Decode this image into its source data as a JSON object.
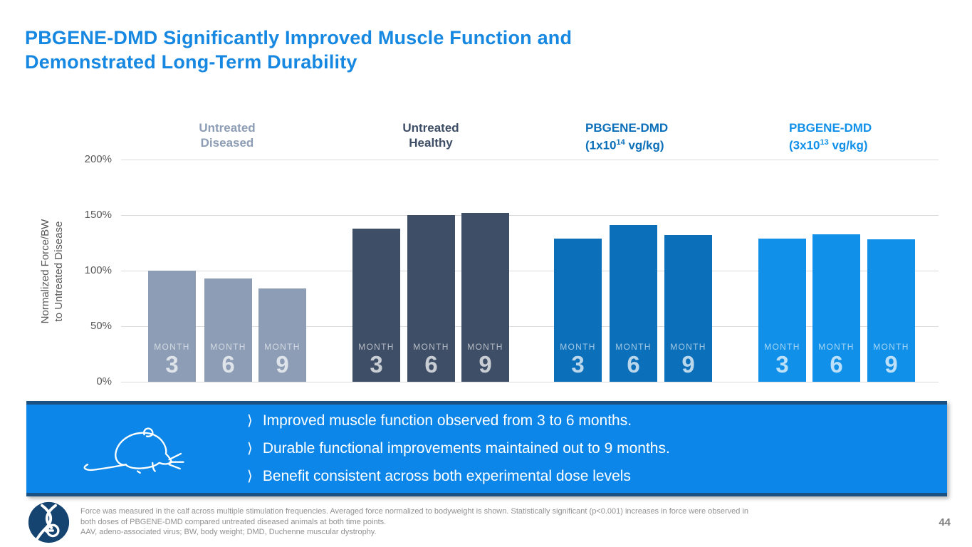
{
  "slide": {
    "title_line1": "PBGENE-DMD Significantly Improved Muscle Function and",
    "title_line2": "Demonstrated Long-Term Durability"
  },
  "colors": {
    "title_blue": "#1788E1",
    "callout_bg": "#0C86E8",
    "callout_border": "#1A5182",
    "gridline": "#DBDBDB",
    "axis_text": "#595959",
    "footnote_gray": "#919191"
  },
  "chart_data": {
    "type": "bar",
    "title": "",
    "ylabel_line1": "Normalized Force/BW",
    "ylabel_line2": "to Untreated Disease",
    "ylim": [
      0,
      200
    ],
    "grid": true,
    "ytick_values": [
      200,
      150,
      100,
      50,
      0
    ],
    "ytick_labels": [
      "200%",
      "150%",
      "100%",
      "50%",
      "0%"
    ],
    "bar_inner_word": "MONTH",
    "categories": [
      "3",
      "6",
      "9"
    ],
    "series": [
      {
        "name_line1": "Untreated",
        "name_line2_pre": "Diseased",
        "name_line2_sup": "",
        "name_line2_post": "",
        "label_align": "center",
        "color": "#8C9DB5",
        "values": [
          100,
          93,
          84
        ]
      },
      {
        "name_line1": "Untreated",
        "name_line2_pre": "Healthy",
        "name_line2_sup": "",
        "name_line2_post": "",
        "label_align": "center",
        "color": "#3E4E66",
        "values": [
          138,
          150,
          152
        ]
      },
      {
        "name_line1": "PBGENE-DMD",
        "name_line2_pre": "(1x10",
        "name_line2_sup": "14",
        "name_line2_post": " vg/kg)",
        "label_align": "left",
        "color": "#0B6FB9",
        "values": [
          129,
          141,
          132
        ]
      },
      {
        "name_line1": "PBGENE-DMD",
        "name_line2_pre": "(3x10",
        "name_line2_sup": "13",
        "name_line2_post": " vg/kg)",
        "label_align": "left",
        "color": "#1090E8",
        "values": [
          129,
          133,
          128
        ]
      }
    ]
  },
  "callout": {
    "bullet_glyph": "⟩",
    "bullets": [
      "Improved muscle function observed from 3 to 6 months.",
      "Durable functional improvements maintained out to 9 months.",
      "Benefit consistent across both experimental dose levels"
    ]
  },
  "footer": {
    "note_line1": "Force was measured in the calf across multiple stimulation frequencies. Averaged force normalized to bodyweight is shown. Statistically significant (p<0.001) increases in force were observed in",
    "note_line2": "both doses of PBGENE-DMD compared untreated diseased animals at both time points.",
    "note_line3": "AAV, adeno-associated virus; BW, body weight; DMD, Duchenne muscular dystrophy.",
    "page_number": "44"
  }
}
